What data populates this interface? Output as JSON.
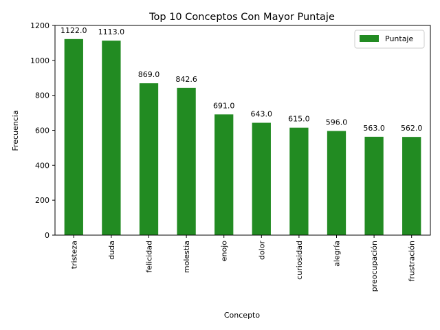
{
  "chart_data": {
    "type": "bar",
    "title": "Top 10 Conceptos Con Mayor Puntaje",
    "xlabel": "Concepto",
    "ylabel": "Frecuencia",
    "ylim": [
      0,
      1200
    ],
    "yticks": [
      0,
      200,
      400,
      600,
      800,
      1000,
      1200
    ],
    "categories": [
      "tristeza",
      "duda",
      "felicidad",
      "molestia",
      "enojo",
      "dolor",
      "curiosidad",
      "alegría",
      "preocupación",
      "frustración"
    ],
    "series": [
      {
        "name": "Puntaje",
        "color": "#228b22",
        "values": [
          1122.0,
          1113.0,
          869.0,
          842.6,
          691.0,
          643.0,
          615.0,
          596.0,
          563.0,
          562.0
        ],
        "data_labels": [
          "1122.0",
          "1113.0",
          "869.0",
          "842.6",
          "691.0",
          "643.0",
          "615.0",
          "596.0",
          "563.0",
          "562.0"
        ]
      }
    ],
    "legend": {
      "position": "top-right"
    },
    "grid": false
  }
}
